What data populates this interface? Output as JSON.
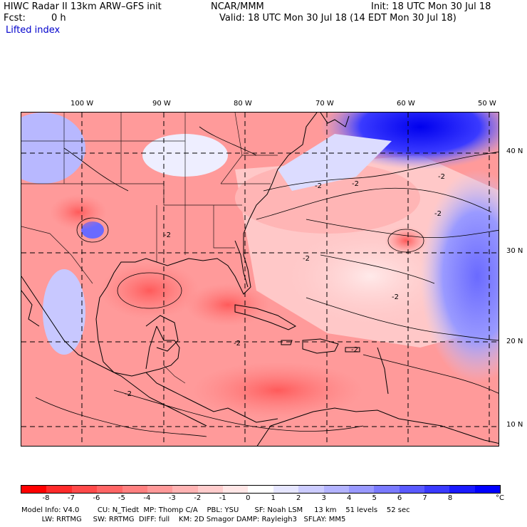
{
  "header": {
    "title": "HIWC Radar II 13km ARW–GFS init",
    "org": "NCAR/MMM",
    "init": "Init: 18 UTC Mon 30 Jul 18",
    "fcst_label": "Fcst:",
    "fcst_value": "0 h",
    "valid": "Valid: 18 UTC Mon 30 Jul 18 (14 EDT Mon 30 Jul 18)",
    "field": "Lifted index"
  },
  "map": {
    "lon_labels": [
      "100 W",
      "90 W",
      "80 W",
      "70 W",
      "60 W",
      "50 W"
    ],
    "lat_labels": [
      "40 N",
      "30 N",
      "20 N",
      "10 N"
    ],
    "contour_labels": [
      "-2",
      "-2",
      "-2",
      "-2",
      "-2",
      "-2",
      "-2",
      "-2",
      "-2",
      "-2"
    ]
  },
  "colorbar": {
    "ticks": [
      "-8",
      "-7",
      "-6",
      "-5",
      "-4",
      "-3",
      "-2",
      "-1",
      "0",
      "1",
      "2",
      "3",
      "4",
      "5",
      "6",
      "7",
      "8"
    ],
    "unit": "°C",
    "colors": [
      "#ff0000",
      "#ff2b2b",
      "#ff4a4a",
      "#ff6565",
      "#ff8080",
      "#ff9999",
      "#ffb3b3",
      "#ffcccc",
      "#ffe6e6",
      "#ffffff",
      "#e6e6ff",
      "#ccccff",
      "#b3b3ff",
      "#9999ff",
      "#7a7aff",
      "#5a5aff",
      "#3a3aff",
      "#1a1aff",
      "#0000ff"
    ]
  },
  "footer": {
    "line1": "Model Info: V4.0        CU: N_Tiedt  MP: Thomp C/A    PBL: YSU       SF: Noah LSM     13 km    51 levels    52 sec",
    "line2": "         LW: RRTMG     SW: RRTMG  DIFF: full    KM: 2D Smagor DAMP: Rayleigh3   SFLAY: MM5"
  }
}
